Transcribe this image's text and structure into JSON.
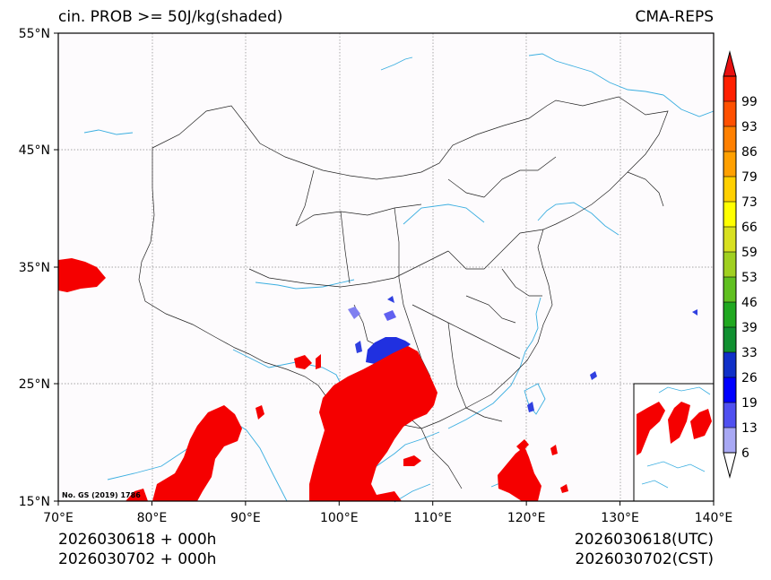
{
  "title_left": "cin. PROB >= 50J/kg(shaded)",
  "title_right": "CMA-REPS",
  "info": {
    "init_line1": "2026030618  +  000h",
    "init_line2": "2026030702  +  000h",
    "valid_line1": "2026030618(UTC)",
    "valid_line2": "2026030702(CST)"
  },
  "stamp": "No. GS (2019) 1786",
  "lat_ticks": [
    "55°N",
    "45°N",
    "35°N",
    "25°N",
    "15°N"
  ],
  "lon_ticks": [
    "70°E",
    "80°E",
    "90°E",
    "100°E",
    "110°E",
    "120°E",
    "130°E",
    "140°E"
  ],
  "colorbar": {
    "levels": [
      "6",
      "13",
      "19",
      "26",
      "33",
      "39",
      "46",
      "53",
      "59",
      "66",
      "73",
      "79",
      "86",
      "93",
      "99"
    ],
    "colors": [
      "#a8a8f4",
      "#5050f0",
      "#0000ff",
      "#1030c8",
      "#109030",
      "#20a820",
      "#60c020",
      "#a0d020",
      "#d8e020",
      "#ffff00",
      "#ffd000",
      "#ffa000",
      "#ff8000",
      "#ff5000",
      "#ff2000"
    ],
    "top_color": "#e81010"
  },
  "colors": {
    "shade_high": "#f50000",
    "shade_low": "#2020e0",
    "coast": "#3aaee0",
    "border": "#222222",
    "background": "#fdfbfd"
  }
}
